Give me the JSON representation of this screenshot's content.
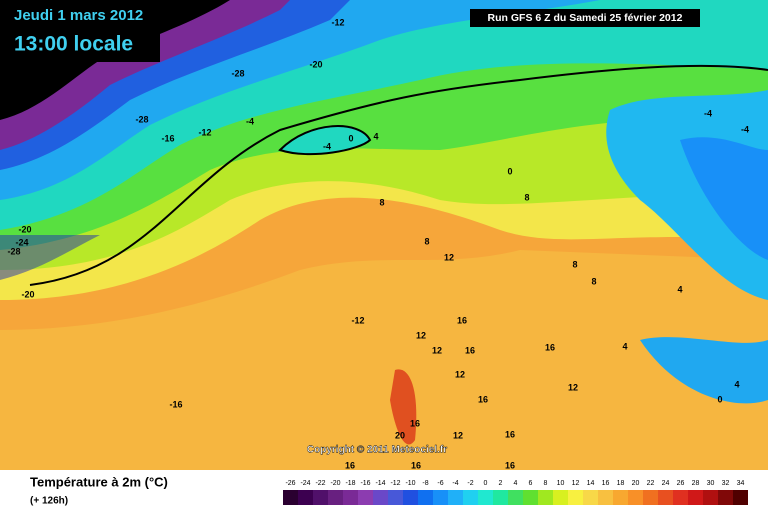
{
  "header": {
    "date": "Jeudi 1 mars 2012",
    "time": "13:00 locale",
    "run": "Run GFS 6 Z du Samedi 25 février 2012"
  },
  "map": {
    "copyright": "Copyright © 2011 Meteociel.fr",
    "contour_labels": [
      -12,
      -20,
      -28,
      -28,
      -16,
      -12,
      -4,
      0,
      -4,
      4,
      -20,
      -24,
      -28,
      -20,
      8,
      8,
      12,
      -12,
      16,
      -16,
      12,
      12,
      16,
      16,
      12,
      8,
      8,
      4,
      4,
      4,
      0,
      -4,
      -4,
      0,
      8,
      12,
      16,
      20,
      16,
      16,
      12,
      16,
      16,
      16
    ]
  },
  "legend": {
    "title": "Température à 2m (°C)",
    "lead": "(+ 126h)",
    "values": [
      -26,
      -24,
      -22,
      -20,
      -18,
      -16,
      -14,
      -12,
      -10,
      -8,
      -6,
      -4,
      -2,
      0,
      2,
      4,
      6,
      8,
      10,
      12,
      14,
      16,
      18,
      20,
      22,
      24,
      26,
      28,
      30,
      32,
      34
    ],
    "colors": [
      "#2a0030",
      "#3c0050",
      "#50106a",
      "#682080",
      "#7a2a96",
      "#8c3cb0",
      "#6a48c8",
      "#4858d8",
      "#2050e0",
      "#1070f0",
      "#1890f8",
      "#20b0f8",
      "#20d0f0",
      "#20e8d0",
      "#20e8a0",
      "#40e060",
      "#60e030",
      "#a0e820",
      "#d8f020",
      "#f8f040",
      "#f8d848",
      "#f8c040",
      "#f8a830",
      "#f89028",
      "#f07020",
      "#e85020",
      "#e03020",
      "#d01818",
      "#b01010",
      "#800808",
      "#500000"
    ]
  }
}
